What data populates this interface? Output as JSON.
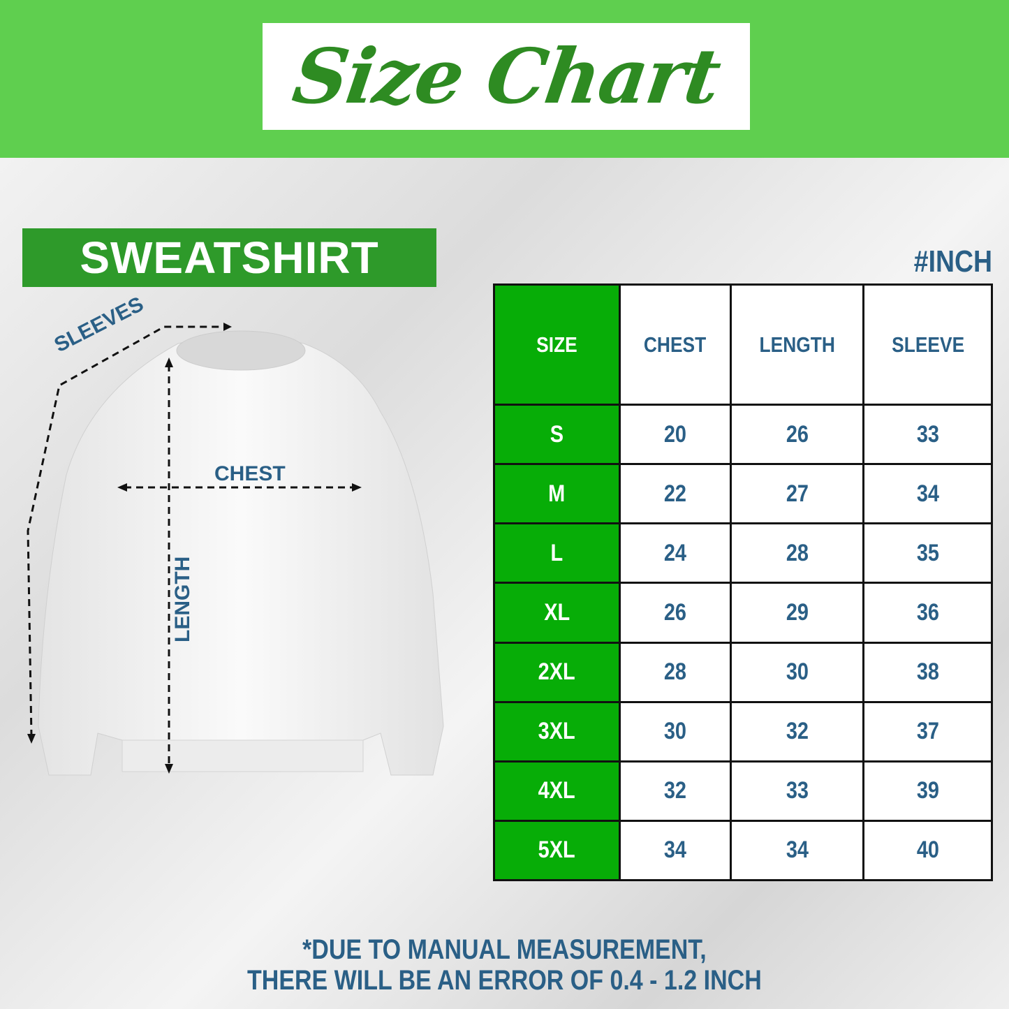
{
  "header": {
    "title": "Size Chart",
    "bg_color": "#5fcf4f",
    "title_color": "#2e8b22"
  },
  "garment": {
    "label": "SWEATSHIRT",
    "color": "#2e9a2a"
  },
  "unit": "#INCH",
  "diagram": {
    "sleeves": "SLEEVES",
    "chest": "CHEST",
    "length": "LENGTH"
  },
  "table": {
    "headers": [
      "SIZE",
      "CHEST",
      "LENGTH",
      "SLEEVE"
    ],
    "rows": [
      [
        "S",
        "20",
        "26",
        "33"
      ],
      [
        "M",
        "22",
        "27",
        "34"
      ],
      [
        "L",
        "24",
        "28",
        "35"
      ],
      [
        "XL",
        "26",
        "29",
        "36"
      ],
      [
        "2XL",
        "28",
        "30",
        "38"
      ],
      [
        "3XL",
        "30",
        "32",
        "37"
      ],
      [
        "4XL",
        "32",
        "33",
        "39"
      ],
      [
        "5XL",
        "34",
        "34",
        "40"
      ]
    ],
    "size_color": "#07ad07",
    "text_color": "#2a5f86"
  },
  "note": {
    "line1": "*DUE TO MANUAL MEASUREMENT,",
    "line2": "THERE WILL BE AN ERROR OF 0.4 - 1.2 INCH"
  }
}
